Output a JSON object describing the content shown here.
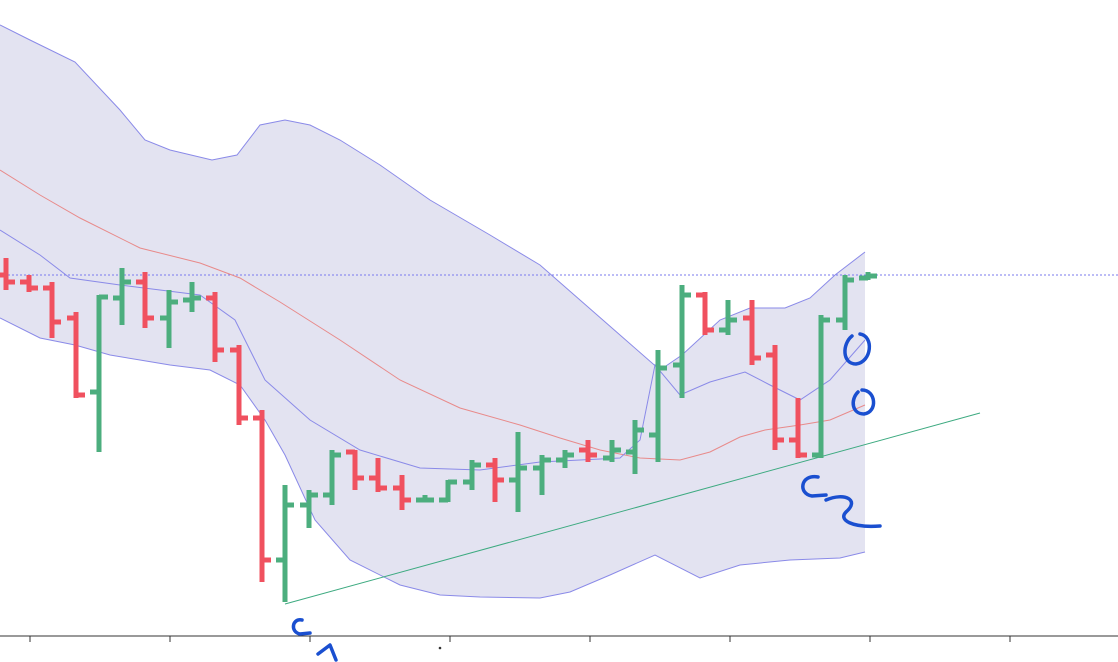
{
  "chart_data": {
    "type": "ohlc",
    "xlim": [
      0,
      1118
    ],
    "ylim": [
      0,
      662
    ],
    "xticks": [
      30,
      170,
      310,
      450,
      590,
      730,
      870,
      1010
    ],
    "up_color": "#4cae7e",
    "down_color": "#f0515f",
    "x": [
      6,
      29,
      52,
      76,
      99,
      122,
      145,
      169,
      192,
      215,
      239,
      262,
      285,
      309,
      332,
      355,
      378,
      402,
      425,
      448,
      472,
      495,
      518,
      542,
      565,
      588,
      612,
      635,
      658,
      682,
      705,
      728,
      752,
      775,
      798,
      821,
      845,
      868
    ],
    "open": [
      387,
      380,
      374,
      344,
      270,
      364,
      380,
      344,
      362,
      364,
      312,
      244,
      102,
      157,
      167,
      210,
      184,
      174,
      162,
      162,
      180,
      197,
      182,
      194,
      202,
      212,
      204,
      210,
      227,
      297,
      367,
      332,
      344,
      307,
      222,
      207,
      342,
      384
    ],
    "high": [
      404,
      387,
      380,
      350,
      367,
      394,
      390,
      372,
      380,
      370,
      317,
      252,
      177,
      172,
      212,
      212,
      204,
      187,
      167,
      182,
      202,
      204,
      230,
      207,
      212,
      222,
      222,
      242,
      312,
      377,
      370,
      362,
      362,
      317,
      264,
      347,
      387,
      390
    ],
    "low": [
      372,
      370,
      324,
      264,
      210,
      337,
      334,
      314,
      350,
      300,
      237,
      80,
      60,
      134,
      157,
      172,
      170,
      152,
      160,
      160,
      172,
      160,
      150,
      167,
      194,
      200,
      200,
      188,
      200,
      264,
      327,
      327,
      297,
      212,
      204,
      204,
      332,
      382
    ],
    "close": [
      380,
      374,
      340,
      267,
      365,
      380,
      344,
      360,
      364,
      312,
      244,
      102,
      157,
      167,
      207,
      184,
      174,
      162,
      162,
      180,
      197,
      182,
      194,
      202,
      207,
      207,
      212,
      232,
      294,
      367,
      332,
      342,
      304,
      222,
      207,
      342,
      382,
      386
    ],
    "band_fill_color": "#e3e3f1",
    "lines": [
      {
        "color": "#8a8ae8",
        "x": [
          0,
          30,
          75,
          120,
          145,
          170,
          212,
          237,
          260,
          285,
          310,
          340,
          380,
          430,
          490,
          540,
          580,
          620,
          660,
          682,
          720,
          750,
          785,
          810,
          835,
          865
        ],
        "y": [
          637,
          622,
          600,
          552,
          522,
          512,
          502,
          507,
          537,
          542,
          537,
          522,
          497,
          462,
          427,
          397,
          362,
          327,
          292,
          307,
          342,
          354,
          354,
          364,
          387,
          410
        ]
      },
      {
        "color": "#8a8ae8",
        "x": [
          0,
          40,
          75,
          110,
          140,
          170,
          210,
          240,
          265,
          285,
          315,
          350,
          400,
          440,
          480,
          540,
          570,
          610,
          655,
          700,
          740,
          790,
          840,
          865
        ],
        "y": [
          344,
          324,
          317,
          307,
          302,
          297,
          292,
          277,
          242,
          207,
          142,
          102,
          77,
          67,
          65,
          64,
          70,
          87,
          107,
          84,
          97,
          102,
          104,
          110
        ]
      },
      {
        "color": "#e88a8a",
        "x": [
          0,
          40,
          80,
          140,
          200,
          240,
          280,
          340,
          400,
          460,
          520,
          560,
          600,
          640,
          680,
          710,
          740,
          765,
          800,
          830,
          865
        ],
        "y": [
          492,
          467,
          444,
          414,
          399,
          384,
          360,
          322,
          282,
          254,
          237,
          224,
          212,
          204,
          202,
          210,
          225,
          232,
          237,
          242,
          257
        ]
      },
      {
        "color": "#8a8ae8",
        "x": [
          0,
          40,
          70,
          120,
          160,
          200,
          235,
          265,
          310,
          360,
          420,
          480,
          540,
          580,
          620,
          640,
          655,
          680,
          710,
          745,
          770,
          800,
          830,
          865
        ],
        "y": [
          432,
          407,
          384,
          377,
          372,
          367,
          342,
          282,
          242,
          212,
          194,
          192,
          200,
          202,
          204,
          222,
          297,
          267,
          280,
          290,
          277,
          262,
          282,
          322
        ]
      },
      {
        "color": "#3daa80",
        "x": [
          285,
          980
        ],
        "y": [
          58,
          249
        ]
      }
    ],
    "hline": {
      "value": 387,
      "color": "#7a7aee"
    }
  }
}
